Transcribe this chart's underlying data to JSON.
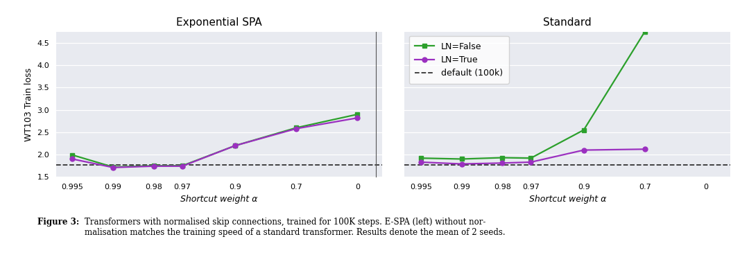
{
  "x_pts": [
    0,
    1,
    2,
    2.7,
    4,
    5.5,
    7
  ],
  "x_tick_labels": [
    "0.995",
    "0.99",
    "0.98",
    "0.97",
    "0.9",
    "0.7",
    "0"
  ],
  "exp_false": [
    1.99,
    1.72,
    1.75,
    1.75,
    2.2,
    2.6,
    2.9
  ],
  "exp_true": [
    1.9,
    1.71,
    1.74,
    1.74,
    2.2,
    2.58,
    2.82
  ],
  "std_false": [
    1.92,
    1.9,
    1.93,
    1.92,
    2.55,
    4.75
  ],
  "std_true": [
    1.83,
    1.79,
    1.81,
    1.83,
    2.1,
    2.12
  ],
  "default_value": 1.77,
  "color_false": "#2ca02c",
  "color_true": "#9b30c0",
  "color_default": "#333333",
  "title_left": "Exponential SPA",
  "title_right": "Standard",
  "ylabel": "WT103 Train loss",
  "xlabel": "Shortcut weight α",
  "legend_labels": [
    "LN=False",
    "LN=True",
    "default (100k)"
  ],
  "ylim": [
    1.5,
    4.75
  ],
  "yticks": [
    1.5,
    2.0,
    2.5,
    3.0,
    3.5,
    4.0,
    4.5
  ],
  "bg_color": "#e8eaf0",
  "fig_bg": "#ffffff",
  "caption_bold": "Figure 3: ",
  "caption_normal": "Transformers with normalised skip connections, trained for 100K steps. E-SPA (left) without nor-\nmalisation matches the training speed of a standard transformer. Results denote the mean of 2 seeds."
}
